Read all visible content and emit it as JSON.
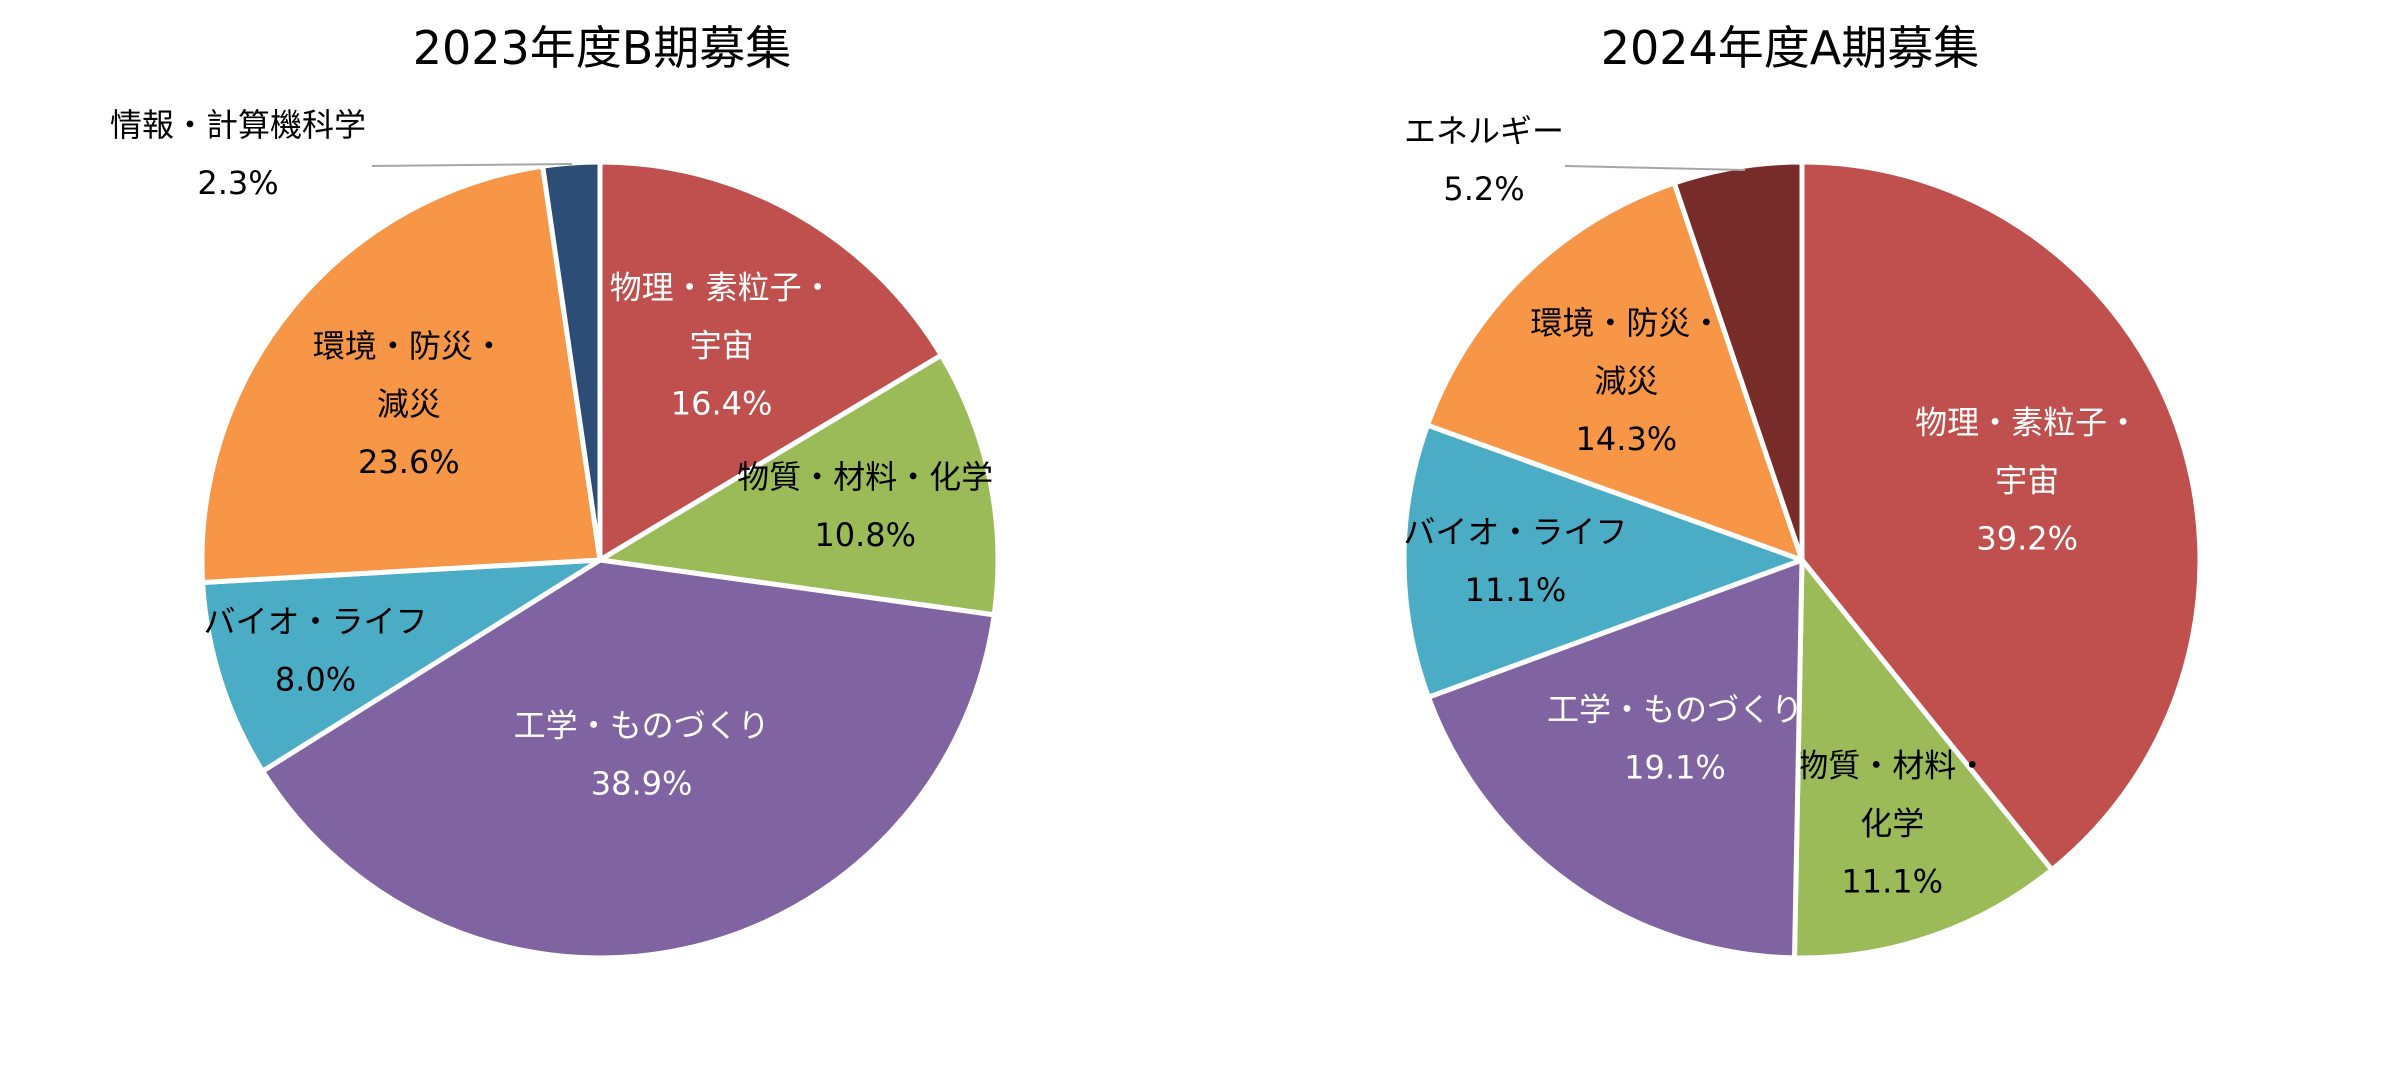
{
  "chart_data": [
    {
      "type": "pie",
      "title": "2023年度B期募集",
      "slices": [
        {
          "label_lines": [
            "物理・素粒子・",
            "宇宙"
          ],
          "value": 16.4,
          "value_text": "16.4%",
          "color": "#c0504d",
          "text_color": "#ffffff"
        },
        {
          "label_lines": [
            "物質・材料・化学"
          ],
          "value": 10.8,
          "value_text": "10.8%",
          "color": "#9bbb59",
          "text_color": "#000000"
        },
        {
          "label_lines": [
            "工学・ものづくり"
          ],
          "value": 38.9,
          "value_text": "38.9%",
          "color": "#8064a2",
          "text_color": "#ffffff"
        },
        {
          "label_lines": [
            "バイオ・ライフ"
          ],
          "value": 8.0,
          "value_text": "8.0%",
          "color": "#4bacc6",
          "text_color": "#000000"
        },
        {
          "label_lines": [
            "環境・防災・",
            "減災"
          ],
          "value": 23.6,
          "value_text": "23.6%",
          "color": "#f79646",
          "text_color": "#000000"
        },
        {
          "label_lines": [
            "情報・計算機科学"
          ],
          "value": 2.3,
          "value_text": "2.3%",
          "color": "#2c4d75",
          "text_color": "#000000",
          "leader": true
        }
      ]
    },
    {
      "type": "pie",
      "title": "2024年度A期募集",
      "slices": [
        {
          "label_lines": [
            "物理・素粒子・",
            "宇宙"
          ],
          "value": 39.2,
          "value_text": "39.2%",
          "color": "#c0504d",
          "text_color": "#ffffff"
        },
        {
          "label_lines": [
            "物質・材料・",
            "化学"
          ],
          "value": 11.1,
          "value_text": "11.1%",
          "color": "#9bbb59",
          "text_color": "#000000"
        },
        {
          "label_lines": [
            "工学・ものづくり"
          ],
          "value": 19.1,
          "value_text": "19.1%",
          "color": "#8064a2",
          "text_color": "#ffffff"
        },
        {
          "label_lines": [
            "バイオ・ライフ"
          ],
          "value": 11.1,
          "value_text": "11.1%",
          "color": "#4bacc6",
          "text_color": "#000000"
        },
        {
          "label_lines": [
            "環境・防災・",
            "減災"
          ],
          "value": 14.3,
          "value_text": "14.3%",
          "color": "#f79646",
          "text_color": "#000000"
        },
        {
          "label_lines": [
            "エネルギー"
          ],
          "value": 5.2,
          "value_text": "5.2%",
          "color": "#772c2a",
          "text_color": "#000000",
          "leader": true
        }
      ]
    }
  ]
}
